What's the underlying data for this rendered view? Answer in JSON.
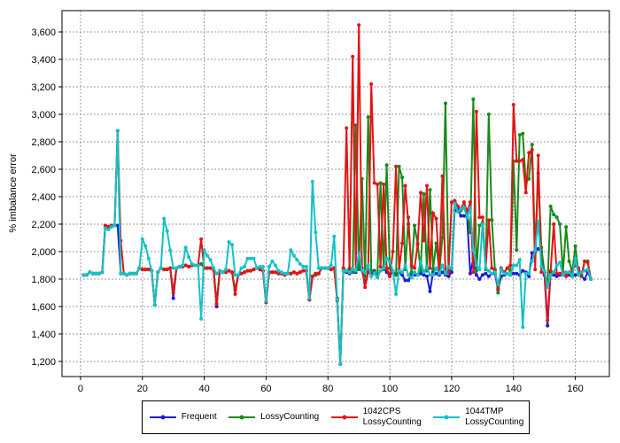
{
  "chart_data": {
    "type": "line",
    "ylabel": "% imbalance error",
    "x": [
      1,
      2,
      3,
      4,
      5,
      6,
      7,
      8,
      9,
      10,
      11,
      12,
      13,
      14,
      15,
      16,
      17,
      18,
      19,
      20,
      21,
      22,
      23,
      24,
      25,
      26,
      27,
      28,
      29,
      30,
      31,
      32,
      33,
      34,
      35,
      36,
      37,
      38,
      39,
      40,
      41,
      42,
      43,
      44,
      45,
      46,
      47,
      48,
      49,
      50,
      51,
      52,
      53,
      54,
      55,
      56,
      57,
      58,
      59,
      60,
      61,
      62,
      63,
      64,
      65,
      66,
      67,
      68,
      69,
      70,
      71,
      72,
      73,
      74,
      75,
      76,
      77,
      78,
      79,
      80,
      81,
      82,
      83,
      84,
      85,
      86,
      87,
      88,
      89,
      90,
      91,
      92,
      93,
      94,
      95,
      96,
      97,
      98,
      99,
      100,
      101,
      102,
      103,
      104,
      105,
      106,
      107,
      108,
      109,
      110,
      111,
      112,
      113,
      114,
      115,
      116,
      117,
      118,
      119,
      120,
      121,
      122,
      123,
      124,
      125,
      126,
      127,
      128,
      129,
      130,
      131,
      132,
      133,
      134,
      135,
      136,
      137,
      138,
      139,
      140,
      141,
      142,
      143,
      144,
      145,
      146,
      147,
      148,
      149,
      150,
      151,
      152,
      153,
      154,
      155,
      156,
      157,
      158,
      159,
      160,
      161,
      162,
      163,
      164,
      165
    ],
    "series": [
      {
        "name": "Frequent",
        "color": "#1c1cd6",
        "values": [
          1830,
          1830,
          1850,
          1840,
          1840,
          1840,
          1850,
          2190,
          2180,
          2190,
          2190,
          2190,
          1840,
          1840,
          1830,
          1840,
          1840,
          1840,
          1880,
          1870,
          1870,
          1870,
          1860,
          1610,
          1850,
          1880,
          1870,
          1870,
          1880,
          1660,
          1880,
          1890,
          1890,
          1900,
          1890,
          1900,
          1900,
          1900,
          1910,
          1880,
          1880,
          1880,
          1870,
          1600,
          1860,
          1850,
          1850,
          1860,
          1850,
          1720,
          1830,
          1840,
          1850,
          1860,
          1860,
          1870,
          1880,
          1870,
          1860,
          1630,
          1850,
          1850,
          1850,
          1840,
          1840,
          1830,
          1840,
          1840,
          1850,
          1840,
          1850,
          1860,
          1860,
          1650,
          1820,
          1830,
          1840,
          1880,
          1880,
          1880,
          1870,
          1880,
          1660,
          1180,
          1860,
          1850,
          1840,
          1860,
          1850,
          1900,
          1860,
          1770,
          1850,
          1840,
          1860,
          1820,
          1860,
          1880,
          1850,
          1820,
          1860,
          1830,
          1850,
          1830,
          1790,
          1790,
          1840,
          1830,
          1830,
          1840,
          1830,
          1820,
          1710,
          1850,
          1840,
          1830,
          1850,
          1830,
          1820,
          1850,
          2300,
          2310,
          2260,
          2260,
          2250,
          1840,
          1950,
          1830,
          1800,
          1830,
          1840,
          1820,
          1840,
          1840,
          1720,
          1820,
          1830,
          1840,
          1830,
          1840,
          1840,
          1830,
          1860,
          1850,
          1820,
          1990,
          2000,
          2020,
          2000,
          1830,
          1460,
          1850,
          1830,
          1820,
          1830,
          1830,
          1830,
          1830,
          1820,
          1830,
          1830,
          1820,
          1800,
          1850,
          1800
        ]
      },
      {
        "name": "LossyCounting",
        "color": "#1a8a1a",
        "values": [
          1830,
          1830,
          1850,
          1840,
          1840,
          1840,
          1850,
          2190,
          2180,
          2190,
          2190,
          2880,
          1840,
          1840,
          1830,
          1840,
          1840,
          1840,
          1880,
          1870,
          1870,
          1870,
          1860,
          1610,
          1850,
          1880,
          1870,
          1870,
          1880,
          1700,
          1880,
          1890,
          1890,
          1900,
          1890,
          1900,
          1900,
          1900,
          1910,
          1880,
          1880,
          1880,
          1870,
          1620,
          1860,
          1850,
          1850,
          1860,
          1850,
          1720,
          1830,
          1840,
          1850,
          1860,
          1860,
          1870,
          1880,
          1870,
          1860,
          1630,
          1850,
          1850,
          1850,
          1840,
          1840,
          1830,
          1840,
          1840,
          1850,
          1840,
          1850,
          1860,
          1860,
          1650,
          1820,
          1830,
          1840,
          1880,
          1880,
          1880,
          1870,
          1880,
          1660,
          1180,
          1880,
          1860,
          1880,
          1850,
          2920,
          1870,
          2530,
          1820,
          2980,
          1860,
          1850,
          1830,
          2500,
          1870,
          2630,
          1880,
          1850,
          1830,
          2620,
          2540,
          1870,
          2250,
          1850,
          2190,
          2060,
          1860,
          2420,
          1860,
          2450,
          1870,
          2060,
          1850,
          2100,
          3080,
          1850,
          1880,
          2370,
          2330,
          2300,
          2320,
          2280,
          2140,
          3110,
          1860,
          2190,
          2210,
          1870,
          3000,
          2230,
          1870,
          1700,
          1870,
          1850,
          1880,
          1860,
          2660,
          2010,
          2850,
          2860,
          2500,
          2530,
          2780,
          2010,
          2570,
          2030,
          1850,
          1760,
          2330,
          2270,
          2250,
          2200,
          1850,
          2180,
          1930,
          1850,
          2040,
          1840,
          1820,
          1930,
          1930,
          1800
        ]
      },
      {
        "name": "1042CPS\nLossyCounting",
        "color": "#e41414",
        "values": [
          1830,
          1830,
          1850,
          1840,
          1840,
          1840,
          1850,
          2190,
          2180,
          2190,
          2190,
          2880,
          2080,
          1840,
          1830,
          1840,
          1840,
          1840,
          1880,
          1870,
          1870,
          1870,
          1860,
          1610,
          1850,
          1880,
          1870,
          1870,
          1880,
          1700,
          1880,
          1890,
          1890,
          1900,
          1890,
          1900,
          1900,
          1900,
          2090,
          1880,
          1880,
          1880,
          1870,
          1620,
          1860,
          1850,
          1850,
          1860,
          1850,
          1690,
          1830,
          1840,
          1850,
          1860,
          1860,
          1870,
          1880,
          1870,
          1860,
          1630,
          1850,
          1850,
          1850,
          1840,
          1840,
          1830,
          1840,
          1840,
          1850,
          1840,
          1850,
          1860,
          1860,
          1650,
          1820,
          1840,
          1840,
          1880,
          1880,
          1880,
          1870,
          1880,
          1640,
          1180,
          1880,
          2900,
          1850,
          3420,
          1860,
          3650,
          1880,
          1740,
          1850,
          3220,
          2500,
          2490,
          1890,
          2490,
          1880,
          1820,
          2000,
          2620,
          1870,
          2060,
          2480,
          2200,
          1900,
          1880,
          2050,
          2430,
          2080,
          2480,
          1880,
          2280,
          2240,
          1860,
          2550,
          1870,
          1850,
          2360,
          2370,
          2330,
          2310,
          2360,
          2290,
          2360,
          1850,
          3020,
          2250,
          2250,
          1880,
          2230,
          1880,
          1860,
          1730,
          1880,
          1850,
          1880,
          1900,
          3070,
          2660,
          2660,
          2670,
          2430,
          2720,
          2740,
          1870,
          2700,
          1850,
          1850,
          1500,
          1860,
          2200,
          1840,
          1840,
          1850,
          1820,
          1850,
          1860,
          1900,
          1880,
          1830,
          1930,
          1920,
          1800
        ]
      },
      {
        "name": "1044TMP\n LossyCounting",
        "color": "#12c2c8",
        "values": [
          1830,
          1830,
          1850,
          1840,
          1840,
          1840,
          1850,
          2170,
          2160,
          2180,
          2190,
          2880,
          1840,
          1840,
          1830,
          1840,
          1840,
          1840,
          1880,
          2090,
          2040,
          1950,
          1860,
          1610,
          1850,
          1880,
          2240,
          2150,
          2010,
          1880,
          1880,
          1890,
          1900,
          2030,
          1960,
          1910,
          1900,
          1900,
          1510,
          2010,
          1970,
          1940,
          1880,
          1840,
          1860,
          1850,
          1870,
          2070,
          2050,
          1830,
          1830,
          1880,
          1890,
          1950,
          1950,
          1950,
          1880,
          1890,
          1890,
          1640,
          1890,
          1930,
          1900,
          1860,
          1850,
          1840,
          1840,
          2010,
          1970,
          1940,
          1910,
          1890,
          1890,
          1660,
          2510,
          2140,
          1880,
          1880,
          1880,
          1880,
          1900,
          2110,
          1650,
          1180,
          1860,
          1860,
          1850,
          1870,
          1860,
          1990,
          1860,
          1850,
          1900,
          1820,
          1840,
          1810,
          1860,
          1880,
          1950,
          1930,
          1860,
          1690,
          1860,
          1850,
          1900,
          1830,
          1810,
          1850,
          1830,
          1930,
          1850,
          1890,
          1830,
          1830,
          1880,
          1840,
          1900,
          1840,
          1890,
          1880,
          2350,
          2290,
          2310,
          2320,
          2250,
          2320,
          2010,
          1900,
          1870,
          2200,
          1880,
          1860,
          1840,
          1850,
          1760,
          1870,
          1840,
          1840,
          1830,
          1900,
          1900,
          1940,
          1450,
          1840,
          1840,
          1930,
          2010,
          2220,
          1890,
          1860,
          1740,
          1830,
          1850,
          1900,
          1920,
          1830,
          1850,
          1850,
          1820,
          1950,
          1830,
          1850,
          1860,
          1870,
          1800
        ]
      }
    ],
    "xlim": [
      -6,
      171
    ],
    "ylim": [
      1090,
      3755
    ],
    "xticks": [
      0,
      20,
      40,
      60,
      80,
      100,
      120,
      140,
      160
    ],
    "yticks": [
      {
        "value": 1200,
        "label": "1,200"
      },
      {
        "value": 1400,
        "label": "1,400"
      },
      {
        "value": 1600,
        "label": "1,600"
      },
      {
        "value": 1800,
        "label": "1,800"
      },
      {
        "value": 2000,
        "label": "2,000"
      },
      {
        "value": 2200,
        "label": "2,200"
      },
      {
        "value": 2400,
        "label": "2,400"
      },
      {
        "value": 2600,
        "label": "2,600"
      },
      {
        "value": 2800,
        "label": "2,800"
      },
      {
        "value": 3000,
        "label": "3,000"
      },
      {
        "value": 3200,
        "label": "3,200"
      },
      {
        "value": 3400,
        "label": "3,400"
      },
      {
        "value": 3600,
        "label": "3,600"
      }
    ],
    "grid": true,
    "legend": "bottom"
  }
}
